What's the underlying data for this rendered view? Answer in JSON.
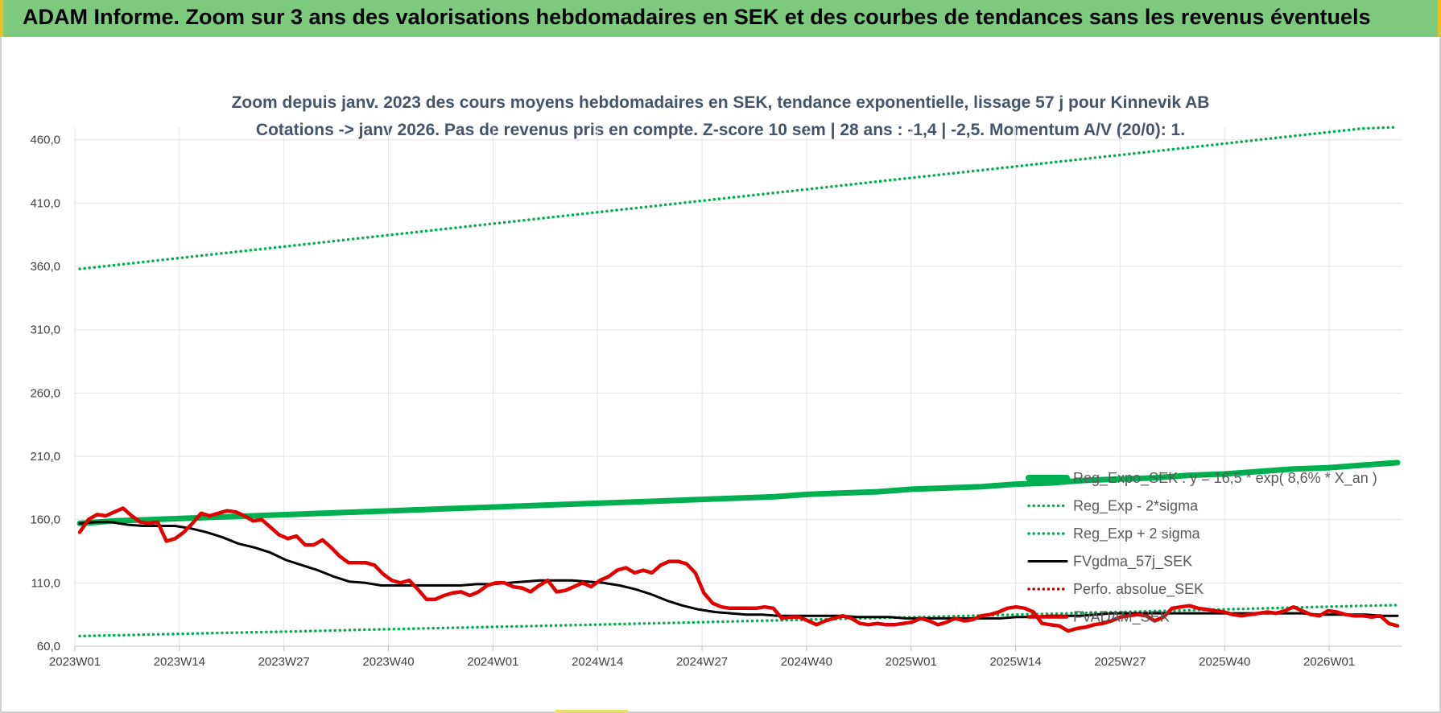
{
  "header": {
    "title": "ADAM Informe. Zoom sur 3 ans des valorisations hebdomadaires en SEK et des courbes de tendances sans les revenus éventuels"
  },
  "chart_data": {
    "type": "line",
    "title": "Zoom depuis janv. 2023 des cours moyens hebdomadaires en SEK, tendance exponentielle, lissage 57 j pour Kinnevik AB",
    "subtitle": "Cotations -> janv 2026. Pas de revenus pris en compte. Z-score 10 sem | 28 ans : -1,4 | -2,5. Momentum A/V (20/0): 1.",
    "xlabel": "",
    "ylabel": "",
    "ylim": [
      60,
      470
    ],
    "yticks": [
      "60,0",
      "110,0",
      "160,0",
      "210,0",
      "260,0",
      "310,0",
      "360,0",
      "410,0",
      "460,0"
    ],
    "x_tick_labels": [
      "2023W01",
      "2023W14",
      "2023W27",
      "2023W40",
      "2024W01",
      "2024W14",
      "2024W27",
      "2024W40",
      "2025W01",
      "2025W14",
      "2025W27",
      "2025W40",
      "2026W01"
    ],
    "grid": true,
    "legend_position": "right",
    "series": [
      {
        "name": "Reg_Expo_SEK : y = 16,5 * exp( 8,6% * X_an )",
        "color": "#00b050",
        "style": "thick-solid",
        "values": [
          157,
          159,
          160,
          161,
          162,
          163,
          164,
          165,
          166,
          167,
          168,
          169,
          170,
          171,
          172,
          173,
          174,
          175,
          176,
          177,
          178,
          180,
          181,
          182,
          184,
          185,
          186,
          188,
          189,
          191,
          192,
          193,
          195,
          196,
          198,
          200,
          201,
          203,
          205
        ]
      },
      {
        "name": "Reg_Exp - 2*sigma",
        "color": "#00b050",
        "style": "dotted",
        "values": [
          68,
          68.6,
          69.2,
          69.8,
          70.4,
          71,
          71.6,
          72.2,
          72.9,
          73.5,
          74.1,
          74.7,
          75.3,
          75.9,
          76.5,
          77.1,
          77.8,
          78.4,
          79,
          79.7,
          80.3,
          81,
          81.6,
          82.3,
          82.9,
          83.6,
          84.3,
          85,
          85.6,
          86.3,
          87,
          87.7,
          88.4,
          89.1,
          89.8,
          90.5,
          91.2,
          91.9,
          92.5
        ]
      },
      {
        "name": "Reg_Exp + 2 sigma",
        "color": "#00b050",
        "style": "dotted",
        "values": [
          358,
          361,
          364,
          367,
          370,
          373,
          376,
          379,
          382,
          385,
          388,
          391,
          394,
          397,
          400,
          403,
          406,
          409,
          412,
          415,
          418,
          421,
          424,
          427,
          430,
          433,
          436,
          439,
          442,
          445,
          448,
          451,
          454,
          457,
          460,
          463,
          466,
          469,
          470
        ]
      },
      {
        "name": "FVgdma_57j_SEK",
        "color": "#000000",
        "style": "solid",
        "values": [
          157,
          158,
          158,
          156,
          155,
          155,
          155,
          153,
          150,
          146,
          141,
          138,
          134,
          128,
          124,
          120,
          115,
          111,
          110,
          108,
          108,
          108,
          108,
          108,
          108,
          109,
          109,
          110,
          111,
          112,
          112,
          112,
          111,
          110,
          108,
          105,
          101,
          96,
          92,
          89,
          87,
          86,
          85,
          85,
          84,
          84,
          84,
          84,
          84,
          83,
          83,
          83,
          82,
          82,
          82,
          82,
          82,
          82,
          82,
          83,
          83,
          84,
          84,
          84,
          85,
          86,
          86,
          86,
          86,
          86,
          86,
          86,
          86,
          86,
          86,
          86,
          86,
          86,
          85,
          85,
          85,
          85,
          84,
          84
        ]
      },
      {
        "name": "Perfo. absolue_SEK",
        "color": "#c00000",
        "style": "dotted",
        "values": []
      },
      {
        "name": "FVADAM_SEK",
        "color": "#e00000",
        "style": "thick-solid",
        "values": [
          150,
          160,
          164,
          163,
          166,
          169,
          163,
          158,
          157,
          158,
          143,
          145,
          150,
          157,
          165,
          163,
          165,
          167,
          166,
          163,
          159,
          160,
          154,
          148,
          145,
          147,
          140,
          140,
          144,
          138,
          131,
          126,
          126,
          126,
          124,
          117,
          112,
          110,
          112,
          105,
          97,
          97,
          100,
          102,
          103,
          100,
          103,
          108,
          110,
          110,
          107,
          106,
          103,
          108,
          112,
          103,
          104,
          107,
          110,
          107,
          112,
          115,
          120,
          122,
          118,
          120,
          118,
          124,
          127,
          127,
          125,
          118,
          102,
          94,
          91,
          90,
          90,
          90,
          90,
          91,
          90,
          82,
          83,
          83,
          80,
          77,
          80,
          82,
          84,
          82,
          78,
          77,
          78,
          77,
          77,
          78,
          79,
          82,
          80,
          77,
          79,
          82,
          80,
          81,
          84,
          85,
          87,
          90,
          91,
          90,
          87,
          78,
          77,
          76,
          72,
          74,
          75,
          77,
          78,
          80,
          83,
          84,
          85,
          84,
          80,
          83,
          90,
          91,
          92,
          90,
          89,
          88,
          87,
          85,
          84,
          85,
          86,
          87,
          86,
          88,
          91,
          88,
          85,
          84,
          88,
          87,
          85,
          84,
          84,
          83,
          84,
          78,
          76
        ]
      }
    ]
  }
}
